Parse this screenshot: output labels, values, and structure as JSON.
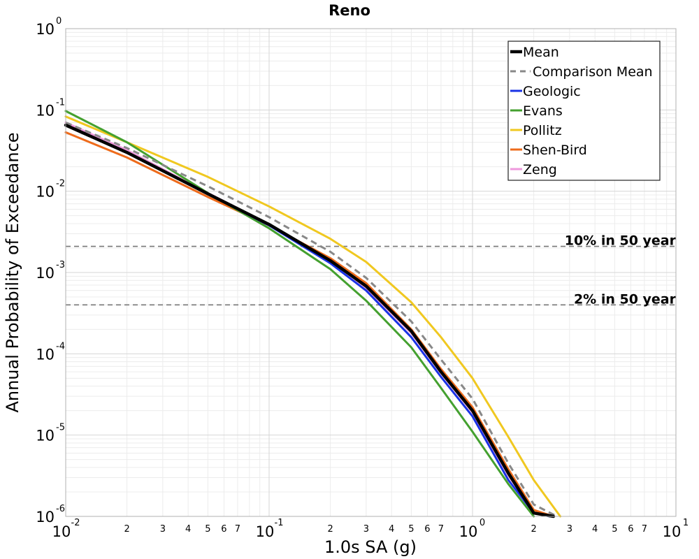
{
  "chart_data": {
    "type": "line",
    "title": "Reno",
    "xlabel": "1.0s SA (g)",
    "ylabel": "Annual Probability of Exceedance",
    "xscale": "log",
    "yscale": "log",
    "xlim": [
      0.01,
      10
    ],
    "ylim": [
      1e-06,
      1
    ],
    "grid": true,
    "legend_position": "top-right",
    "x_major_ticks": [
      {
        "base": "10",
        "exp": "-2"
      },
      {
        "base": "10",
        "exp": "-1"
      },
      {
        "base": "10",
        "exp": "0"
      },
      {
        "base": "10",
        "exp": "1"
      }
    ],
    "x_minor_tick_labels": [
      "2",
      "3",
      "4",
      "5",
      "6",
      "7"
    ],
    "y_major_ticks": [
      {
        "base": "10",
        "exp": "0"
      },
      {
        "base": "10",
        "exp": "-1"
      },
      {
        "base": "10",
        "exp": "-2"
      },
      {
        "base": "10",
        "exp": "-3"
      },
      {
        "base": "10",
        "exp": "-4"
      },
      {
        "base": "10",
        "exp": "-5"
      },
      {
        "base": "10",
        "exp": "-6"
      }
    ],
    "reference_lines": [
      {
        "label": "10% in 50 year",
        "y": 0.0021
      },
      {
        "label": "2% in 50 year",
        "y": 0.0004
      }
    ],
    "series": [
      {
        "name": "Mean",
        "color": "#000000",
        "style": "solid-thick",
        "x": [
          0.01,
          0.02,
          0.05,
          0.1,
          0.2,
          0.3,
          0.5,
          0.7,
          1.0,
          1.5,
          2.0,
          2.5
        ],
        "y": [
          0.065,
          0.03,
          0.0093,
          0.0039,
          0.0014,
          0.00068,
          0.00019,
          6e-05,
          2e-05,
          3.4e-06,
          1.1e-06,
          1e-06
        ]
      },
      {
        "name": "Comparison Mean",
        "color": "#888888",
        "style": "dashed",
        "x": [
          0.01,
          0.02,
          0.05,
          0.1,
          0.2,
          0.3,
          0.5,
          0.7,
          1.0,
          1.5,
          2.0,
          2.6
        ],
        "y": [
          0.07,
          0.034,
          0.0115,
          0.0048,
          0.0018,
          0.00086,
          0.00025,
          8.5e-05,
          2.8e-05,
          4.5e-06,
          1.4e-06,
          1e-06
        ]
      },
      {
        "name": "Geologic",
        "color": "#1a33e6",
        "style": "solid",
        "x": [
          0.01,
          0.02,
          0.05,
          0.1,
          0.2,
          0.3,
          0.5,
          0.7,
          1.0,
          1.5,
          2.0,
          2.4
        ],
        "y": [
          0.065,
          0.03,
          0.0093,
          0.0038,
          0.0013,
          0.0006,
          0.00016,
          5.2e-05,
          1.7e-05,
          2.8e-06,
          1.1e-06,
          1e-06
        ]
      },
      {
        "name": "Evans",
        "color": "#44a02f",
        "style": "solid",
        "x": [
          0.01,
          0.02,
          0.05,
          0.1,
          0.2,
          0.3,
          0.5,
          0.7,
          1.0,
          1.5,
          2.0
        ],
        "y": [
          0.097,
          0.04,
          0.0095,
          0.0035,
          0.0011,
          0.00045,
          0.00012,
          3.8e-05,
          1.1e-05,
          2.5e-06,
          1e-06
        ]
      },
      {
        "name": "Pollitz",
        "color": "#f0c820",
        "style": "solid",
        "x": [
          0.01,
          0.02,
          0.05,
          0.1,
          0.2,
          0.3,
          0.5,
          0.7,
          1.0,
          1.5,
          2.0,
          2.7
        ],
        "y": [
          0.083,
          0.04,
          0.015,
          0.0065,
          0.0026,
          0.00135,
          0.00043,
          0.00016,
          5e-05,
          9.5e-06,
          2.8e-06,
          1e-06
        ]
      },
      {
        "name": "Shen-Bird",
        "color": "#ee6b1b",
        "style": "solid",
        "x": [
          0.01,
          0.02,
          0.05,
          0.1,
          0.2,
          0.3,
          0.5,
          0.7,
          1.0,
          1.5,
          2.0,
          2.5
        ],
        "y": [
          0.053,
          0.026,
          0.0085,
          0.0038,
          0.0015,
          0.00074,
          0.0002,
          6.5e-05,
          2.2e-05,
          3.8e-06,
          1.2e-06,
          1e-06
        ]
      },
      {
        "name": "Zeng",
        "color": "#ee99dd",
        "style": "solid",
        "x": [
          0.01,
          0.02,
          0.05,
          0.1,
          0.2,
          0.3,
          0.5,
          0.7,
          1.0,
          1.5,
          2.0,
          2.5
        ],
        "y": [
          0.07,
          0.032,
          0.0095,
          0.0039,
          0.0014,
          0.00065,
          0.00018,
          5.8e-05,
          1.9e-05,
          3.2e-06,
          1.1e-06,
          1e-06
        ]
      }
    ]
  }
}
